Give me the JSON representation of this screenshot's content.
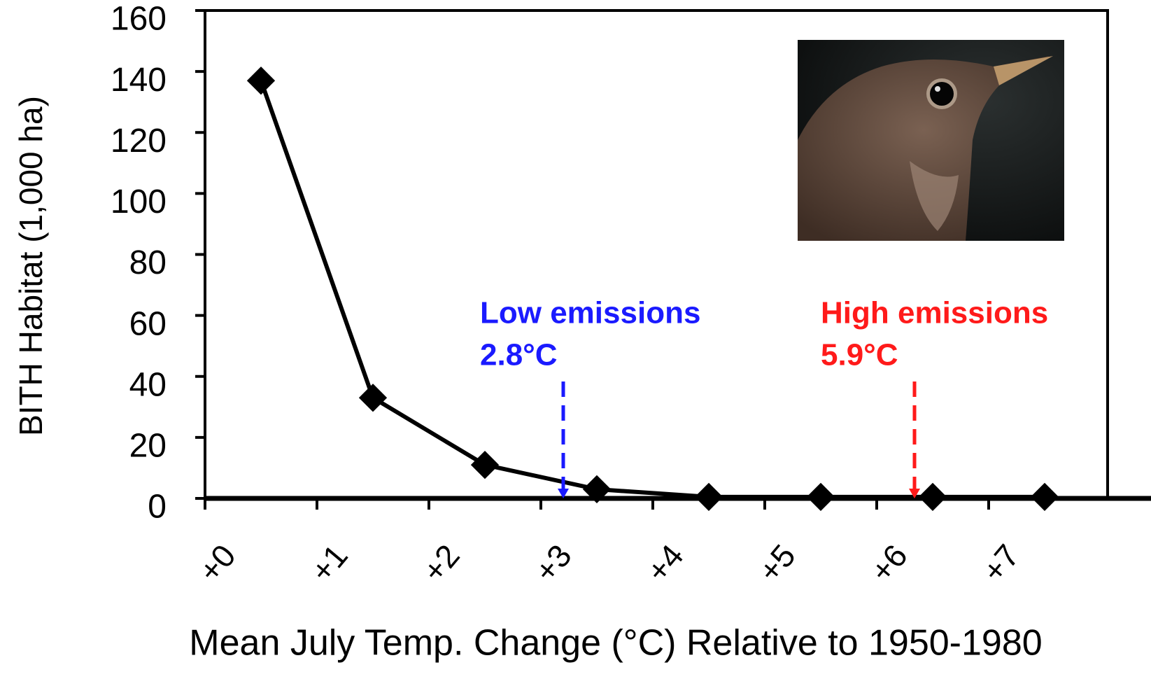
{
  "chart_data": {
    "type": "line",
    "y_label": "BITH Habitat (1,000 ha)",
    "x_label": "Mean July Temp. Change (°C) Relative to 1950-1980",
    "xlim": [
      0,
      8
    ],
    "xticks": [
      {
        "value": 0,
        "label": "+0"
      },
      {
        "value": 1,
        "label": "+1"
      },
      {
        "value": 2,
        "label": "+2"
      },
      {
        "value": 3,
        "label": "+3"
      },
      {
        "value": 4,
        "label": "+4"
      },
      {
        "value": 5,
        "label": "+5"
      },
      {
        "value": 6,
        "label": "+6"
      },
      {
        "value": 7,
        "label": "+7"
      }
    ],
    "ylim": [
      0,
      160
    ],
    "yticks": [
      0,
      20,
      40,
      60,
      80,
      100,
      120,
      140,
      160
    ],
    "series": [
      {
        "color": "#000000",
        "x": [
          0.5,
          1.5,
          2.5,
          3.5,
          4.5,
          5.5,
          6.5,
          7.5
        ],
        "values": [
          137,
          33,
          11,
          3,
          0.5,
          0.5,
          0.5,
          0.5
        ]
      }
    ],
    "annotations": [
      {
        "text": "Low emissions",
        "value": "2.8°C",
        "color": "#1a1aff"
      },
      {
        "text": "High emissions",
        "value": "5.9°C",
        "color": "#ff1a1a"
      }
    ]
  }
}
